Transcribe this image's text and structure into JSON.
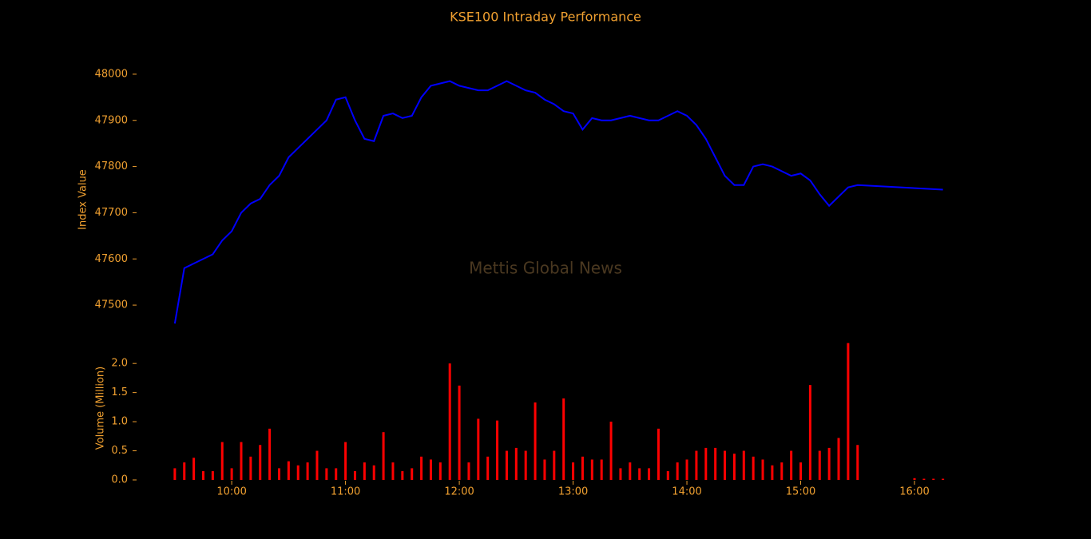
{
  "chart_data": [
    {
      "type": "line",
      "title": "KSE100 Intraday Performance",
      "watermark": "Mettis Global News",
      "ylabel": "Index Value",
      "color": "#0000ff",
      "x": [
        "09:30",
        "09:35",
        "09:40",
        "09:45",
        "09:50",
        "09:55",
        "10:00",
        "10:05",
        "10:10",
        "10:15",
        "10:20",
        "10:25",
        "10:30",
        "10:35",
        "10:40",
        "10:45",
        "10:50",
        "10:55",
        "11:00",
        "11:05",
        "11:10",
        "11:15",
        "11:20",
        "11:25",
        "11:30",
        "11:35",
        "11:40",
        "11:45",
        "11:50",
        "11:55",
        "12:00",
        "12:05",
        "12:10",
        "12:15",
        "12:20",
        "12:25",
        "12:30",
        "12:35",
        "12:40",
        "12:45",
        "12:50",
        "12:55",
        "13:00",
        "13:05",
        "13:10",
        "13:15",
        "13:20",
        "13:25",
        "13:30",
        "13:35",
        "13:40",
        "13:45",
        "13:50",
        "13:55",
        "14:00",
        "14:05",
        "14:10",
        "14:15",
        "14:20",
        "14:25",
        "14:30",
        "14:35",
        "14:40",
        "14:45",
        "14:50",
        "14:55",
        "15:00",
        "15:05",
        "15:10",
        "15:15",
        "15:20",
        "15:25",
        "15:30",
        "16:15"
      ],
      "values": [
        47460,
        47580,
        47590,
        47600,
        47610,
        47640,
        47660,
        47700,
        47720,
        47730,
        47760,
        47780,
        47820,
        47840,
        47860,
        47880,
        47900,
        47945,
        47950,
        47900,
        47860,
        47855,
        47910,
        47915,
        47905,
        47910,
        47950,
        47975,
        47980,
        47985,
        47975,
        47970,
        47965,
        47965,
        47975,
        47985,
        47975,
        47965,
        47960,
        47945,
        47935,
        47920,
        47915,
        47880,
        47905,
        47900,
        47900,
        47905,
        47910,
        47905,
        47900,
        47900,
        47910,
        47920,
        47910,
        47890,
        47860,
        47820,
        47780,
        47760,
        47760,
        47800,
        47805,
        47800,
        47790,
        47780,
        47785,
        47770,
        47740,
        47715,
        47735,
        47755,
        47760,
        47750
      ],
      "xlim": [
        "09:25",
        "16:20"
      ],
      "ylim": [
        47450,
        48050
      ],
      "yticks": [
        47500,
        47600,
        47700,
        47800,
        47900,
        48000
      ]
    },
    {
      "type": "bar",
      "ylabel": "Volume (Million)",
      "color": "#ff0000",
      "x": [
        "09:30",
        "09:35",
        "09:40",
        "09:45",
        "09:50",
        "09:55",
        "10:00",
        "10:05",
        "10:10",
        "10:15",
        "10:20",
        "10:25",
        "10:30",
        "10:35",
        "10:40",
        "10:45",
        "10:50",
        "10:55",
        "11:00",
        "11:05",
        "11:10",
        "11:15",
        "11:20",
        "11:25",
        "11:30",
        "11:35",
        "11:40",
        "11:45",
        "11:50",
        "11:55",
        "12:00",
        "12:05",
        "12:10",
        "12:15",
        "12:20",
        "12:25",
        "12:30",
        "12:35",
        "12:40",
        "12:45",
        "12:50",
        "12:55",
        "13:00",
        "13:05",
        "13:10",
        "13:15",
        "13:20",
        "13:25",
        "13:30",
        "13:35",
        "13:40",
        "13:45",
        "13:50",
        "13:55",
        "14:00",
        "14:05",
        "14:10",
        "14:15",
        "14:20",
        "14:25",
        "14:30",
        "14:35",
        "14:40",
        "14:45",
        "14:50",
        "14:55",
        "15:00",
        "15:05",
        "15:10",
        "15:15",
        "15:20",
        "15:25",
        "15:30",
        "16:00",
        "16:05",
        "16:10",
        "16:15"
      ],
      "values": [
        0.2,
        0.3,
        0.38,
        0.15,
        0.15,
        0.65,
        0.2,
        0.65,
        0.4,
        0.6,
        0.88,
        0.2,
        0.32,
        0.25,
        0.3,
        0.5,
        0.2,
        0.2,
        0.65,
        0.15,
        0.3,
        0.25,
        0.82,
        0.3,
        0.15,
        0.2,
        0.4,
        0.35,
        0.3,
        2.0,
        1.62,
        0.3,
        1.05,
        0.4,
        1.02,
        0.5,
        0.55,
        0.5,
        1.33,
        0.35,
        0.5,
        1.4,
        0.3,
        0.4,
        0.35,
        0.35,
        1.0,
        0.2,
        0.3,
        0.2,
        0.2,
        0.88,
        0.15,
        0.3,
        0.35,
        0.5,
        0.55,
        0.55,
        0.5,
        0.45,
        0.5,
        0.4,
        0.35,
        0.25,
        0.3,
        0.5,
        0.3,
        1.63,
        0.5,
        0.55,
        0.72,
        2.35,
        0.6,
        0.03,
        0.02,
        0.02,
        0.02
      ],
      "xlim": [
        "09:25",
        "16:20"
      ],
      "ylim": [
        0,
        2.4
      ],
      "yticks": [
        {
          "value": 0,
          "label": "0.0"
        },
        0.5,
        {
          "value": 1,
          "label": "1.0"
        },
        1.5,
        {
          "value": 2,
          "label": "2.0"
        }
      ],
      "xticks": [
        "10:00",
        "11:00",
        "12:00",
        "13:00",
        "14:00",
        "15:00",
        "16:00"
      ]
    }
  ]
}
